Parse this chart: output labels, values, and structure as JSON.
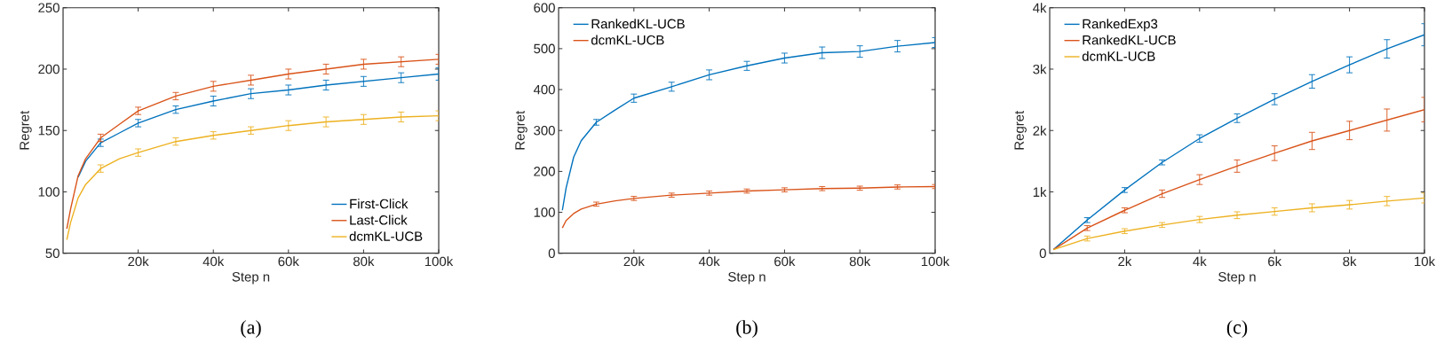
{
  "chart_data": [
    {
      "type": "line",
      "title": "(a)",
      "xlabel": "Step n",
      "ylabel": "Regret",
      "xlim": [
        0,
        100000
      ],
      "ylim": [
        50,
        250
      ],
      "xticks": [
        {
          "value": 20000,
          "label": "20k"
        },
        {
          "value": 40000,
          "label": "40k"
        },
        {
          "value": 60000,
          "label": "60k"
        },
        {
          "value": 80000,
          "label": "80k"
        },
        {
          "value": 100000,
          "label": "100k"
        }
      ],
      "yticks": [
        50,
        100,
        150,
        200,
        250
      ],
      "legend": "bottom right",
      "grid": false,
      "x": [
        1000,
        2000,
        4000,
        6000,
        10000,
        15000,
        20000,
        30000,
        40000,
        50000,
        60000,
        70000,
        80000,
        90000,
        100000
      ],
      "series": [
        {
          "name": "First-Click",
          "color": "#0072bd",
          "values": [
            null,
            null,
            112,
            125,
            140,
            148,
            156,
            167,
            174,
            180,
            183,
            187,
            190,
            193,
            196
          ],
          "errors": [
            null,
            null,
            null,
            null,
            3,
            null,
            3,
            3,
            4,
            4,
            4,
            4,
            4,
            4,
            5
          ]
        },
        {
          "name": "Last-Click",
          "color": "#d95319",
          "values": [
            70,
            86,
            113,
            127,
            144,
            155,
            166,
            178,
            186,
            191,
            196,
            200,
            204,
            206,
            208
          ],
          "errors": [
            null,
            null,
            null,
            null,
            3,
            null,
            3,
            3,
            4,
            4,
            4,
            4,
            4,
            4,
            4
          ]
        },
        {
          "name": "dcmKL-UCB",
          "color": "#edb120",
          "values": [
            61,
            75,
            95,
            106,
            119,
            127,
            132,
            141,
            146,
            150,
            154,
            157,
            159,
            161,
            162
          ],
          "errors": [
            null,
            null,
            null,
            null,
            3,
            null,
            3,
            3,
            3,
            3,
            4,
            4,
            4,
            4,
            4
          ]
        }
      ]
    },
    {
      "type": "line",
      "title": "(b)",
      "xlabel": "Step n",
      "ylabel": "Regret",
      "xlim": [
        0,
        100000
      ],
      "ylim": [
        0,
        600
      ],
      "xticks": [
        {
          "value": 20000,
          "label": "20k"
        },
        {
          "value": 40000,
          "label": "40k"
        },
        {
          "value": 60000,
          "label": "60k"
        },
        {
          "value": 80000,
          "label": "80k"
        },
        {
          "value": 100000,
          "label": "100k"
        }
      ],
      "yticks": [
        0,
        100,
        200,
        300,
        400,
        500,
        600
      ],
      "legend": "top left",
      "grid": false,
      "x": [
        1000,
        2000,
        4000,
        6000,
        10000,
        15000,
        20000,
        30000,
        40000,
        50000,
        60000,
        70000,
        80000,
        90000,
        100000
      ],
      "series": [
        {
          "name": "RankedKL-UCB",
          "color": "#0072bd",
          "values": [
            105,
            160,
            235,
            275,
            320,
            350,
            379,
            407,
            436,
            458,
            477,
            490,
            493,
            506,
            515
          ],
          "errors": [
            null,
            null,
            null,
            null,
            7,
            null,
            10,
            11,
            12,
            11,
            12,
            14,
            14,
            14,
            12
          ]
        },
        {
          "name": "dcmKL-UCB",
          "color": "#d95319",
          "values": [
            62,
            80,
            97,
            108,
            120,
            128,
            134,
            142,
            147,
            152,
            155,
            158,
            159,
            162,
            163
          ],
          "errors": [
            null,
            null,
            null,
            null,
            5,
            null,
            5,
            5,
            5,
            5,
            5,
            5,
            5,
            5,
            5
          ]
        }
      ]
    },
    {
      "type": "line",
      "title": "(c)",
      "xlabel": "Step n",
      "ylabel": "Regret",
      "xlim": [
        0,
        10000
      ],
      "ylim": [
        0,
        4000
      ],
      "xticks": [
        {
          "value": 2000,
          "label": "2k"
        },
        {
          "value": 4000,
          "label": "4k"
        },
        {
          "value": 6000,
          "label": "6k"
        },
        {
          "value": 8000,
          "label": "8k"
        },
        {
          "value": 10000,
          "label": "10k"
        }
      ],
      "yticks": [
        0,
        {
          "value": 1000,
          "label": "1k"
        },
        {
          "value": 2000,
          "label": "2k"
        },
        {
          "value": 3000,
          "label": "3k"
        },
        {
          "value": 4000,
          "label": "4k"
        }
      ],
      "legend": "top left",
      "grid": false,
      "x": [
        100,
        1000,
        2000,
        3000,
        4000,
        5000,
        6000,
        7000,
        8000,
        9000,
        10000
      ],
      "series": [
        {
          "name": "RankedExp3",
          "color": "#0072bd",
          "values": [
            60,
            540,
            1030,
            1480,
            1870,
            2200,
            2510,
            2800,
            3070,
            3330,
            3560
          ],
          "errors": [
            null,
            40,
            40,
            40,
            60,
            70,
            90,
            110,
            130,
            150,
            180
          ]
        },
        {
          "name": "RankedKL-UCB",
          "color": "#d95319",
          "values": [
            60,
            410,
            700,
            970,
            1200,
            1420,
            1630,
            1830,
            2000,
            2170,
            2340
          ],
          "errors": [
            null,
            40,
            40,
            60,
            80,
            100,
            120,
            140,
            150,
            180,
            200
          ]
        },
        {
          "name": "dcmKL-UCB",
          "color": "#edb120",
          "values": [
            60,
            240,
            360,
            460,
            550,
            620,
            680,
            740,
            790,
            850,
            900
          ],
          "errors": [
            null,
            40,
            40,
            40,
            50,
            55,
            60,
            65,
            70,
            75,
            80
          ]
        }
      ]
    }
  ]
}
